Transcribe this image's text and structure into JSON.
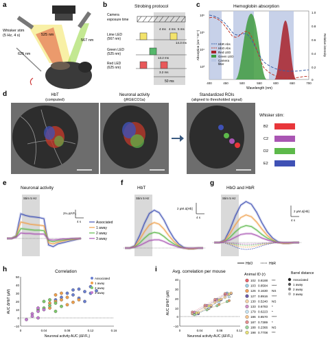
{
  "panels": {
    "a": {
      "letter": "a",
      "whisker_label_1": "Whisker stim",
      "whisker_label_2": "(5 Hz, 4 s)",
      "led_625": "625 nm",
      "led_525": "525 nm",
      "led_567": "567 nm"
    },
    "b": {
      "letter": "b",
      "title": "Strobing protocol",
      "rows": [
        "Camera",
        "exposure time",
        "Lime LED",
        "(567 nm)",
        "Green LED",
        "(525 nm)",
        "Red LED",
        "(625 nm)"
      ],
      "ann_4ms_a": "4 ms",
      "ann_4ms_b": "4 ms",
      "ann_5ms": "5 ms",
      "ann_143": "14.3 ms",
      "ann_132": "13.2 ms",
      "ann_32": "3.2 ms",
      "ann_50": "50 ms"
    },
    "c": {
      "letter": "c",
      "title": "Hemoglobin absorption",
      "ylabel": "Absorption (cm⁻¹ M⁻¹)",
      "y2label": "Relative intensity",
      "xlabel": "Wavelength (nm)",
      "yticks": [
        "10⁶",
        "10⁵",
        "10⁴",
        "10³"
      ],
      "y2ticks": [
        "1.0",
        "0.8",
        "0.6",
        "0.4",
        "0.2",
        "0"
      ],
      "xticks": [
        "400",
        "450",
        "500",
        "550",
        "600",
        "650",
        "700"
      ],
      "legend": [
        "HbR Abs",
        "HbO Abs",
        "Red LED",
        "Green LED",
        "Camera",
        "filter"
      ],
      "colors": {
        "hbr": "#3a5fa8",
        "hbo": "#c0392b",
        "red": "#a8222a",
        "green": "#3f9b3f",
        "filter": "#b9c6e4"
      }
    },
    "d": {
      "letter": "d",
      "img1_title_1": "HbT",
      "img1_title_2": "(computed)",
      "img2_title_1": "Neuronal activity",
      "img2_title_2": "(jRGECO1a)",
      "img3_title_1": "Standardized ROIs",
      "img3_title_2": "(aligned to thresholded signal)",
      "legend_title": "Whisker stim:",
      "legend_items": [
        {
          "label": "B2",
          "color": "#e8363a"
        },
        {
          "label": "C2",
          "color": "#a955b3"
        },
        {
          "label": "D2",
          "color": "#5db94a"
        },
        {
          "label": "E2",
          "color": "#3f51b5"
        }
      ]
    },
    "e": {
      "letter": "e",
      "title": "Neuronal activity",
      "stim": "Stim 5 Hz",
      "scale_y": "2% ΔF/F₀",
      "scale_x": "4 s",
      "legend": [
        "Associated",
        "1 away",
        "2 away",
        "3 away"
      ]
    },
    "f": {
      "letter": "f",
      "title": "HbT",
      "stim": "Stim 5 Hz",
      "scale_y": "2 μM Δ[Hb]",
      "scale_x": "4 s"
    },
    "g": {
      "letter": "g",
      "title": "HbO and HbR",
      "stim": "Stim 5 Hz",
      "scale_y": "2 μM Δ[Hb]",
      "scale_x": "4 s",
      "legend_hbo": "HbO",
      "legend_hbr": "HbR"
    },
    "h": {
      "letter": "h",
      "title": "Correlation",
      "ylabel": "AUC ΔHbT (μM)",
      "xlabel": "Neuronal activity AUC (ΔF/F₀)",
      "yticks": [
        "50",
        "40",
        "30",
        "20",
        "10",
        "0",
        "−10"
      ],
      "xticks": [
        "0",
        "0.04",
        "0.08",
        "0.12",
        "0.16"
      ],
      "legend": [
        "Associated",
        "1 away",
        "2 away",
        "3 away"
      ]
    },
    "i": {
      "letter": "i",
      "title": "Avg. correlation per mouse",
      "ylabel": "AUC ΔHbT (μM)",
      "xlabel": "Neuronal activity AUC (ΔF/F₀)",
      "yticks": [
        "40",
        "30",
        "20",
        "10",
        "0",
        "−10"
      ],
      "xticks": [
        "0",
        "0.04",
        "0.08",
        "0.12"
      ],
      "animal_header": "Animal ID (r)",
      "barrel_header_1": "Barrel distance",
      "animals": [
        {
          "id": "102",
          "r": "0.8188",
          "sig": "***",
          "color": "#e8606a"
        },
        {
          "id": "103",
          "r": "0.8584",
          "sig": "****",
          "color": "#9bcde3"
        },
        {
          "id": "126",
          "r": "0.1630",
          "sig": "NS",
          "color": "#f2a05c"
        },
        {
          "id": "127",
          "r": "0.8916",
          "sig": "****",
          "color": "#6a5aa8"
        },
        {
          "id": "130",
          "r": "0.5240",
          "sig": "NS",
          "color": "#f5d3a8"
        },
        {
          "id": "133",
          "r": "0.6783",
          "sig": "*",
          "color": "#d28fc7"
        },
        {
          "id": "179",
          "r": "0.6223",
          "sig": "*",
          "color": "#c6e3f2"
        },
        {
          "id": "186",
          "r": "0.8570",
          "sig": "****",
          "color": "#f7c58f"
        },
        {
          "id": "187",
          "r": "0.7389",
          "sig": "*",
          "color": "#e38e8e"
        },
        {
          "id": "188",
          "r": "0.2366",
          "sig": "NS",
          "color": "#9bd39b"
        },
        {
          "id": "198",
          "r": "0.7708",
          "sig": "***",
          "color": "#e7e07a"
        }
      ],
      "barrel_legend": [
        "Associated",
        "1 away",
        "2 away",
        "3 away"
      ]
    }
  },
  "chart_data": [
    {
      "type": "line",
      "title": "Neuronal activity",
      "series": [
        {
          "name": "Associated",
          "values": [
            0,
            0,
            0.5,
            4.5,
            4.2,
            4.0,
            3.9,
            3.8,
            3.6,
            -1.2,
            -1.5,
            -1.0,
            -0.8,
            -0.6,
            -0.4,
            -0.2,
            0
          ]
        },
        {
          "name": "1 away",
          "values": [
            0,
            0,
            0.4,
            3.0,
            2.8,
            2.6,
            2.5,
            2.4,
            2.3,
            -0.8,
            -1.0,
            -0.7,
            -0.5,
            -0.3,
            -0.2,
            -0.1,
            0
          ]
        },
        {
          "name": "2 away",
          "values": [
            0,
            0,
            0.3,
            1.8,
            1.7,
            1.6,
            1.5,
            1.5,
            1.4,
            -0.4,
            -0.6,
            -0.4,
            -0.3,
            -0.2,
            -0.1,
            0,
            0
          ]
        },
        {
          "name": "3 away",
          "values": [
            0,
            0,
            0.2,
            1.0,
            0.9,
            0.9,
            0.8,
            0.8,
            0.8,
            -0.2,
            -0.3,
            -0.2,
            -0.1,
            -0.1,
            0,
            0,
            0
          ]
        }
      ]
    },
    {
      "type": "line",
      "title": "HbT",
      "series": [
        {
          "name": "Associated",
          "values": [
            0,
            0,
            0.3,
            1.5,
            3.0,
            4.2,
            4.6,
            4.3,
            3.4,
            2.2,
            1.2,
            0.5,
            0.1,
            -0.1,
            -0.1,
            0,
            0
          ]
        },
        {
          "name": "1 away",
          "values": [
            0,
            0,
            0.2,
            1.0,
            2.0,
            2.8,
            3.1,
            2.9,
            2.3,
            1.5,
            0.8,
            0.3,
            0,
            -0.1,
            -0.1,
            0,
            0
          ]
        },
        {
          "name": "2 away",
          "values": [
            0,
            0,
            0.1,
            0.6,
            1.2,
            1.7,
            1.9,
            1.8,
            1.4,
            0.9,
            0.5,
            0.2,
            0,
            0,
            0,
            0,
            0
          ]
        },
        {
          "name": "3 away",
          "values": [
            0,
            0,
            0.1,
            0.3,
            0.6,
            0.9,
            1.0,
            1.0,
            0.8,
            0.5,
            0.3,
            0.1,
            0,
            0,
            0,
            0,
            0
          ]
        }
      ]
    },
    {
      "type": "scatter",
      "title": "Correlation",
      "xlabel": "Neuronal activity AUC (ΔF/F₀)",
      "ylabel": "AUC ΔHbT (μM)",
      "xlim": [
        0,
        0.16
      ],
      "ylim": [
        -10,
        50
      ],
      "series": [
        {
          "name": "Associated",
          "points": [
            [
              0.06,
              22
            ],
            [
              0.08,
              30
            ],
            [
              0.09,
              28
            ],
            [
              0.1,
              35
            ],
            [
              0.11,
              32
            ],
            [
              0.12,
              38
            ],
            [
              0.07,
              25
            ],
            [
              0.1,
              24
            ],
            [
              0.12,
              30
            ],
            [
              0.13,
              33
            ],
            [
              0.11,
              20
            ],
            [
              0.09,
              34
            ]
          ]
        },
        {
          "name": "1 away",
          "points": [
            [
              0.05,
              18
            ],
            [
              0.06,
              20
            ],
            [
              0.07,
              22
            ],
            [
              0.08,
              25
            ],
            [
              0.09,
              19
            ],
            [
              0.06,
              28
            ],
            [
              0.08,
              16
            ],
            [
              0.07,
              30
            ],
            [
              0.1,
              22
            ],
            [
              0.05,
              12
            ]
          ]
        },
        {
          "name": "2 away",
          "points": [
            [
              0.04,
              12
            ],
            [
              0.05,
              15
            ],
            [
              0.06,
              18
            ],
            [
              0.03,
              10
            ],
            [
              0.05,
              22
            ],
            [
              0.07,
              14
            ],
            [
              0.04,
              20
            ],
            [
              0.06,
              8
            ]
          ]
        },
        {
          "name": "3 away",
          "points": [
            [
              0.02,
              5
            ],
            [
              0.03,
              8
            ],
            [
              0.04,
              10
            ],
            [
              0.02,
              2
            ],
            [
              0.03,
              12
            ],
            [
              0.01,
              -2
            ],
            [
              0.03,
              0
            ]
          ]
        }
      ]
    },
    {
      "type": "scatter",
      "title": "Avg. correlation per mouse",
      "xlabel": "Neuronal activity AUC (ΔF/F₀)",
      "ylabel": "AUC ΔHbT (μM)",
      "xlim": [
        0,
        0.12
      ],
      "ylim": [
        -10,
        40
      ]
    }
  ]
}
